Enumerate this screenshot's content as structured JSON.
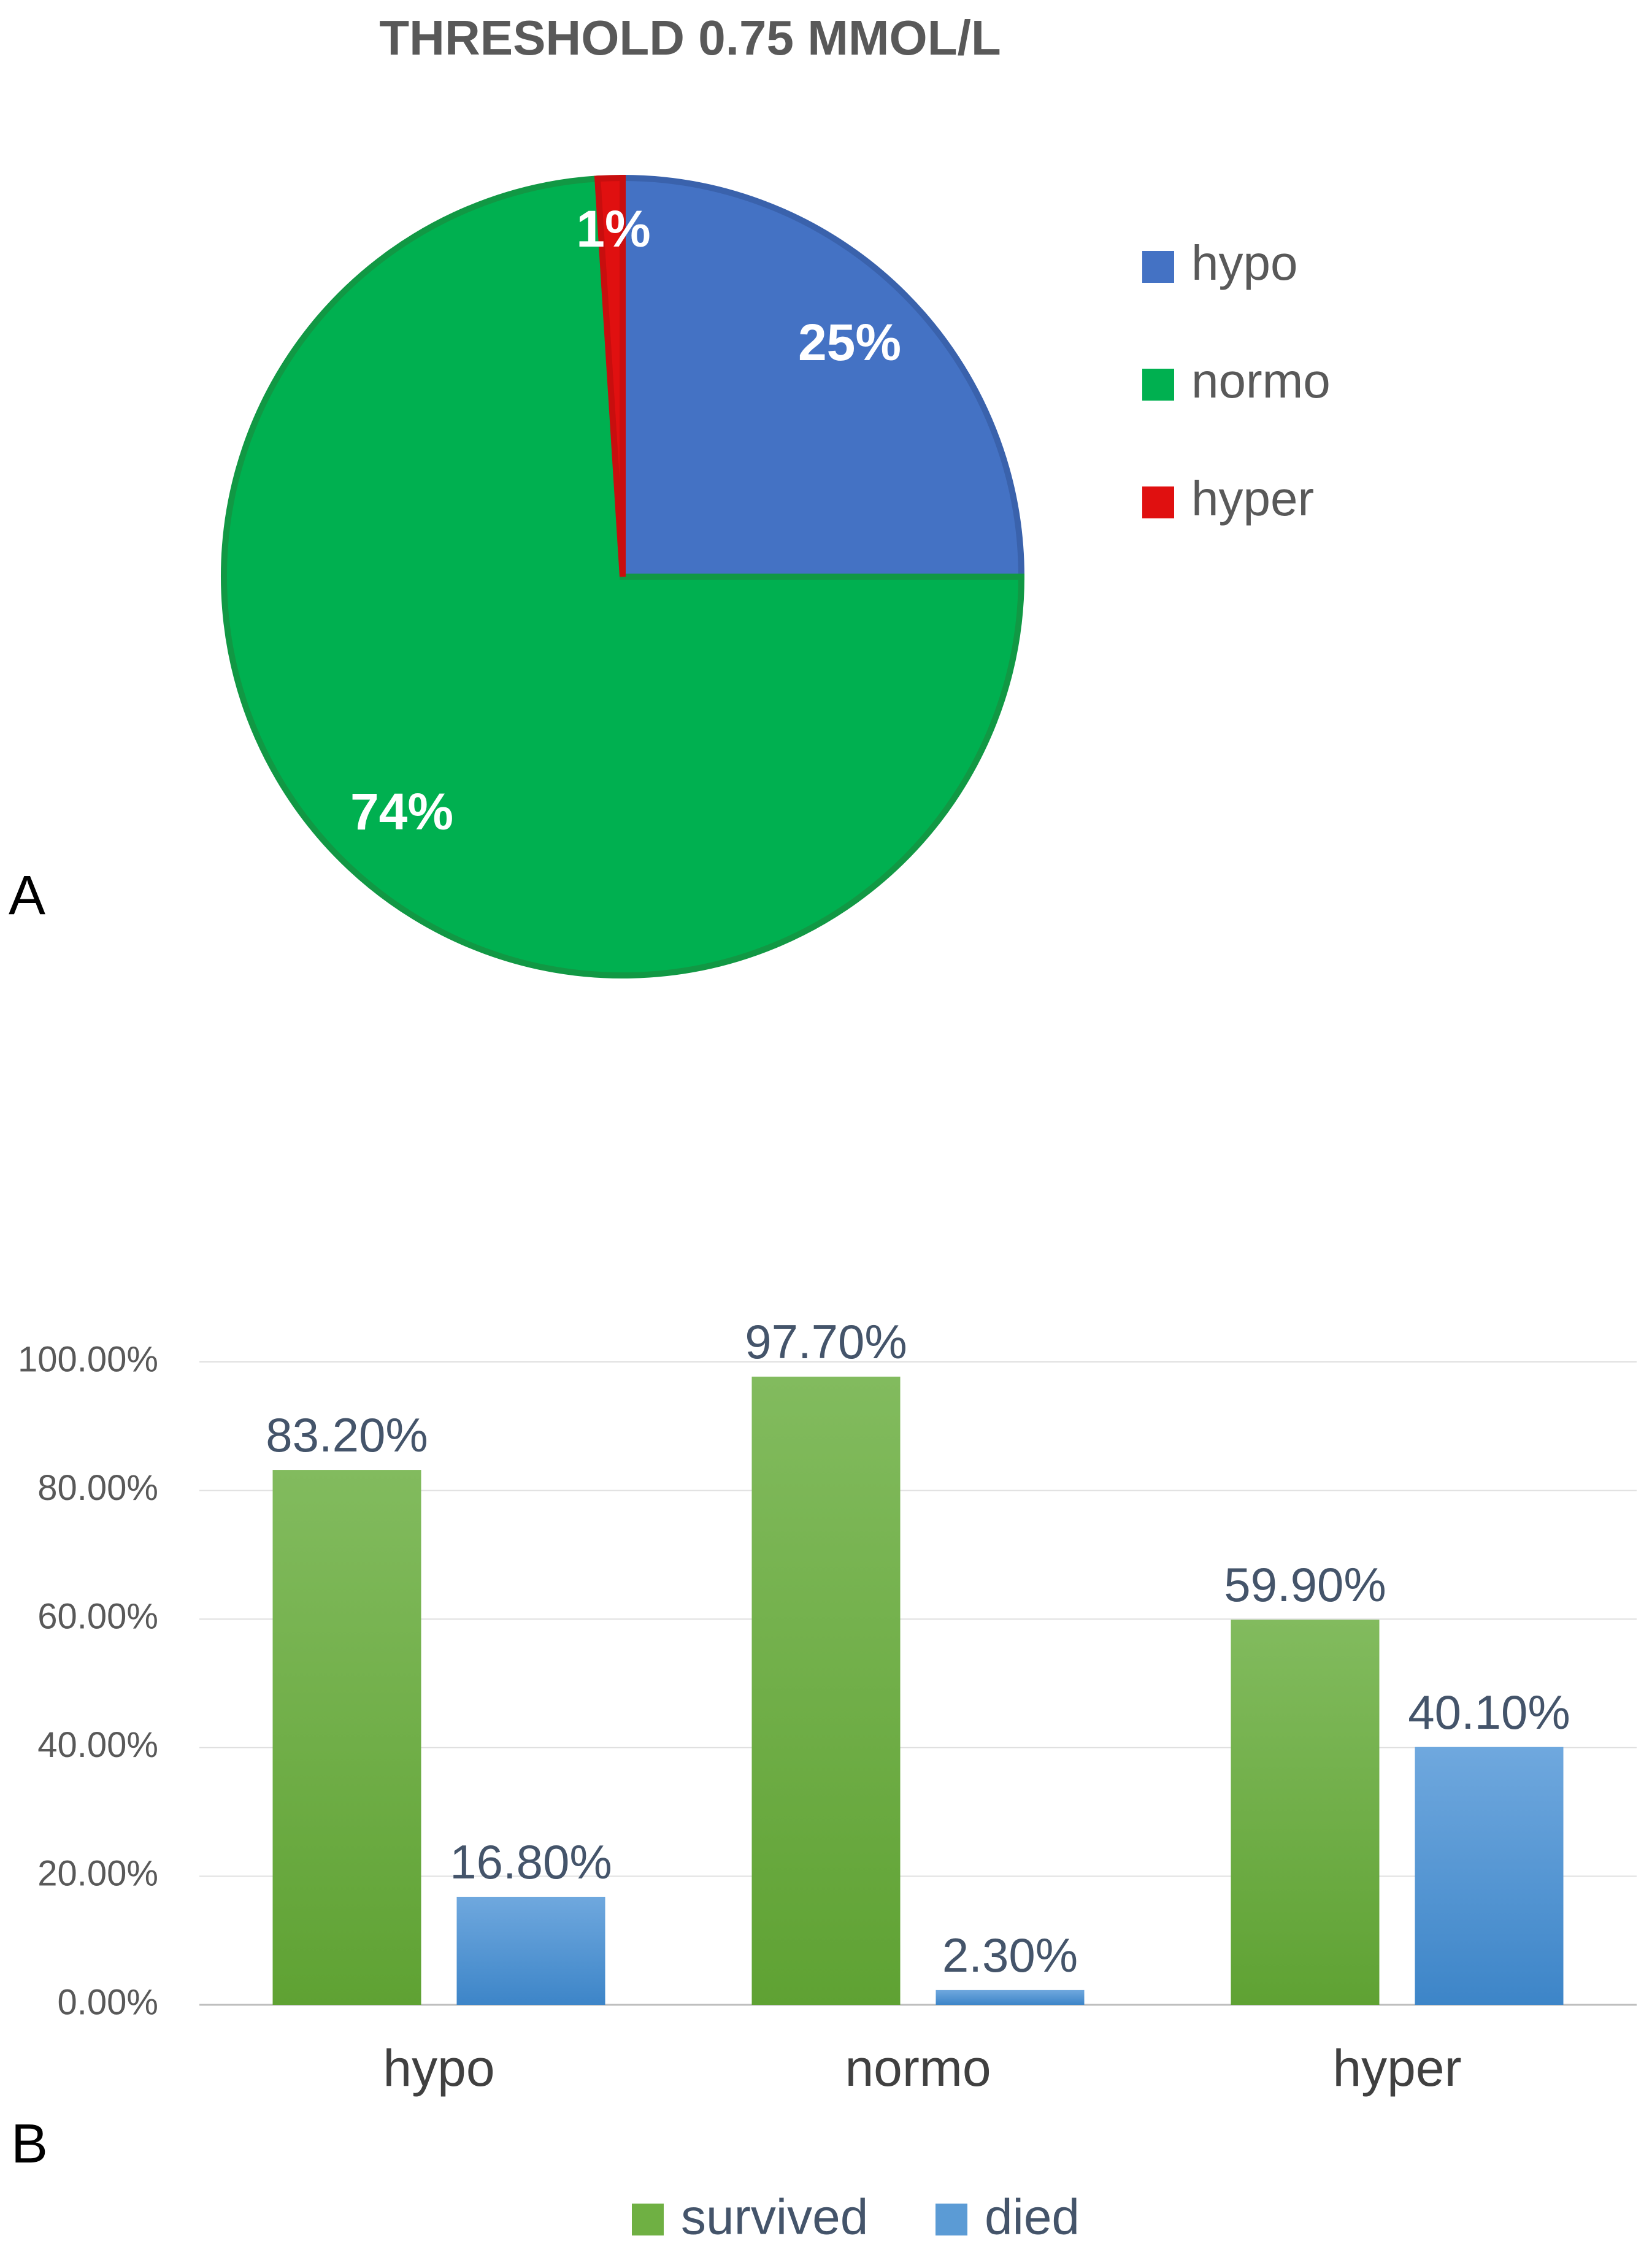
{
  "panels": {
    "a_label": "A",
    "b_label": "B"
  },
  "colors": {
    "hypo": "#4472C4",
    "normo": "#00B050",
    "hyper": "#E01010",
    "survived": "#70AD47",
    "died": "#5B9BD5",
    "text_dark": "#44546A",
    "title": "#595959"
  },
  "chart_data": [
    {
      "type": "pie",
      "title": "THRESHOLD 0.75 MMOL/L",
      "categories": [
        "hypo",
        "normo",
        "hyper"
      ],
      "values": [
        25,
        74,
        1
      ],
      "labels": [
        "25%",
        "74%",
        "1%"
      ],
      "legend": [
        "hypo",
        "normo",
        "hyper"
      ],
      "legend_position": "right"
    },
    {
      "type": "bar",
      "categories": [
        "hypo",
        "normo",
        "hyper"
      ],
      "series": [
        {
          "name": "survived",
          "values": [
            83.2,
            97.7,
            59.9
          ],
          "labels": [
            "83.20%",
            "97.70%",
            "59.90%"
          ]
        },
        {
          "name": "died",
          "values": [
            16.8,
            2.3,
            40.1
          ],
          "labels": [
            "16.80%",
            "2.30%",
            "40.10%"
          ]
        }
      ],
      "ylim": [
        0,
        100
      ],
      "yticks": [
        0,
        20,
        40,
        60,
        80,
        100
      ],
      "ytick_labels": [
        "0.00%",
        "20.00%",
        "40.00%",
        "60.00%",
        "80.00%",
        "100.00%"
      ],
      "grid": true,
      "legend_position": "bottom"
    }
  ]
}
